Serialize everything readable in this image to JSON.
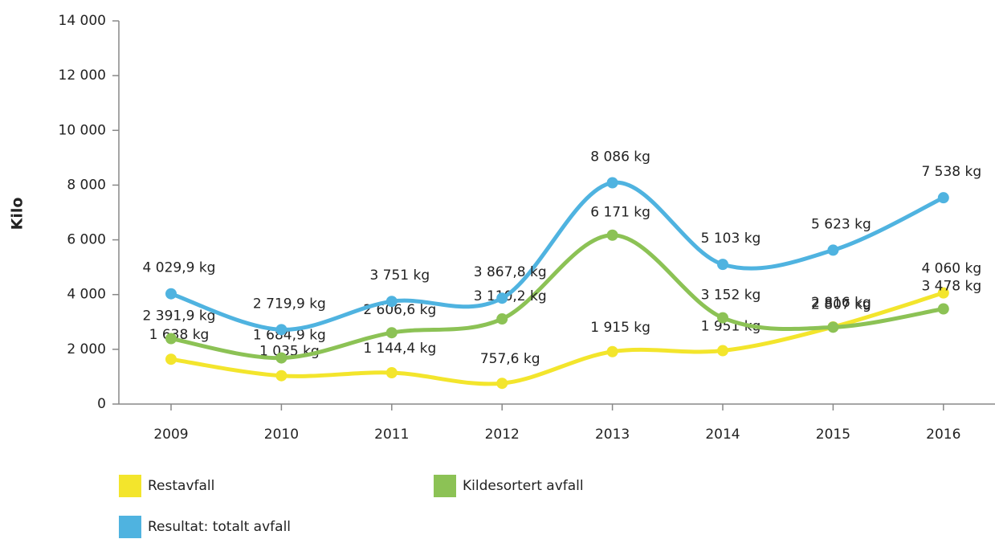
{
  "chart_data": {
    "type": "line",
    "y_label": "Kilo",
    "categories": [
      "2009",
      "2010",
      "2011",
      "2012",
      "2013",
      "2014",
      "2015",
      "2016"
    ],
    "series": [
      {
        "name": "Restavfall",
        "color": "#f3e52c",
        "values": [
          1638,
          1035,
          1144.4,
          757.6,
          1915,
          1951,
          2816,
          4060
        ],
        "value_labels": [
          "1 638 kg",
          "1 035 kg",
          "1 144,4 kg",
          "757,6 kg",
          "1 915 kg",
          "1 951 kg",
          "2 816 kg",
          "4 060 kg"
        ]
      },
      {
        "name": "Kildesortert avfall",
        "color": "#8cc255",
        "values": [
          2391.9,
          1684.9,
          2606.6,
          3110.2,
          6171,
          3152,
          2807,
          3478
        ],
        "value_labels": [
          "2 391,9 kg",
          "1 684,9 kg",
          "2 606,6 kg",
          "3 110,2 kg",
          "6 171 kg",
          "3 152 kg",
          "2 807 kg",
          "3 478 kg"
        ]
      },
      {
        "name": "Resultat: totalt avfall",
        "color": "#4fb3e0",
        "values": [
          4029.9,
          2719.9,
          3751,
          3867.8,
          8086,
          5103,
          5623,
          7538
        ],
        "value_labels": [
          "4 029,9 kg",
          "2 719,9 kg",
          "3 751 kg",
          "3 867,8 kg",
          "8 086 kg",
          "5 103 kg",
          "5 623 kg",
          "7 538 kg"
        ]
      }
    ],
    "ylim": [
      0,
      14000
    ],
    "yticks": [
      0,
      {
        "value": 2000,
        "label": "2 000"
      },
      {
        "value": 4000,
        "label": "4 000"
      },
      {
        "value": 6000,
        "label": "6 000"
      },
      {
        "value": 8000,
        "label": "8 000"
      },
      {
        "value": 10000,
        "label": "10 000"
      },
      {
        "value": 12000,
        "label": "12 000"
      },
      {
        "value": 14000,
        "label": "14 000"
      }
    ],
    "grid": false,
    "legend": "bottom"
  }
}
